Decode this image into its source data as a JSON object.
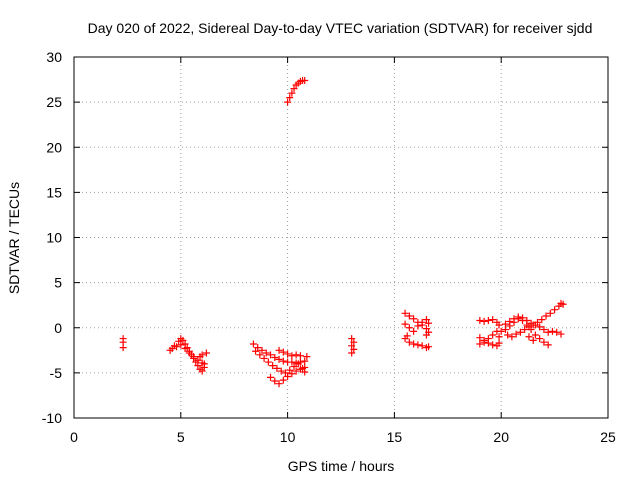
{
  "chart_data": {
    "type": "scatter",
    "title": "Day 020 of 2022, Sidereal Day-to-day VTEC variation (SDTVAR) for receiver sjdd",
    "xlabel": "GPS time / hours",
    "ylabel": "SDTVAR / TECUs",
    "xlim": [
      0,
      25
    ],
    "ylim": [
      -10,
      30
    ],
    "xticks": [
      "0",
      "5",
      "10",
      "15",
      "20",
      "25"
    ],
    "yticks": [
      "-10",
      "-5",
      "0",
      "5",
      "10",
      "15",
      "20",
      "25",
      "30"
    ],
    "grid": true,
    "marker": "plus",
    "color": "#ff0000",
    "series": [
      {
        "points": [
          [
            2.3,
            -1.2
          ],
          [
            2.3,
            -1.6
          ],
          [
            2.3,
            -2.2
          ],
          [
            4.5,
            -2.5
          ],
          [
            4.7,
            -2.0
          ],
          [
            4.9,
            -1.5
          ],
          [
            5.0,
            -1.2
          ],
          [
            5.1,
            -1.4
          ],
          [
            5.2,
            -1.8
          ],
          [
            5.3,
            -2.2
          ],
          [
            5.4,
            -2.6
          ],
          [
            5.5,
            -3.0
          ],
          [
            5.6,
            -3.4
          ],
          [
            5.7,
            -3.8
          ],
          [
            5.8,
            -4.2
          ],
          [
            5.9,
            -4.6
          ],
          [
            6.0,
            -4.8
          ],
          [
            6.1,
            -4.4
          ],
          [
            6.1,
            -4.0
          ],
          [
            4.6,
            -2.3
          ],
          [
            4.8,
            -2.1
          ],
          [
            5.0,
            -1.9
          ],
          [
            5.2,
            -2.3
          ],
          [
            5.4,
            -2.8
          ],
          [
            5.6,
            -3.2
          ],
          [
            5.8,
            -3.6
          ],
          [
            6.0,
            -3.9
          ],
          [
            5.9,
            -3.2
          ],
          [
            6.0,
            -3.0
          ],
          [
            6.2,
            -2.8
          ],
          [
            8.4,
            -1.8
          ],
          [
            8.6,
            -2.2
          ],
          [
            8.8,
            -2.5
          ],
          [
            9.0,
            -2.8
          ],
          [
            9.2,
            -3.0
          ],
          [
            9.4,
            -3.3
          ],
          [
            9.6,
            -3.5
          ],
          [
            9.8,
            -3.7
          ],
          [
            10.0,
            -3.8
          ],
          [
            10.2,
            -3.8
          ],
          [
            10.4,
            -3.9
          ],
          [
            10.6,
            -3.8
          ],
          [
            10.8,
            -3.7
          ],
          [
            8.5,
            -2.6
          ],
          [
            8.7,
            -3.0
          ],
          [
            8.9,
            -3.4
          ],
          [
            9.1,
            -3.8
          ],
          [
            9.3,
            -4.2
          ],
          [
            9.5,
            -4.5
          ],
          [
            9.7,
            -4.8
          ],
          [
            9.9,
            -5.0
          ],
          [
            10.1,
            -4.7
          ],
          [
            10.3,
            -4.3
          ],
          [
            10.5,
            -4.0
          ],
          [
            10.7,
            -4.5
          ],
          [
            10.8,
            -4.9
          ],
          [
            9.2,
            -5.5
          ],
          [
            9.4,
            -5.9
          ],
          [
            9.6,
            -6.2
          ],
          [
            9.8,
            -5.8
          ],
          [
            10.0,
            -5.4
          ],
          [
            10.2,
            -5.1
          ],
          [
            10.4,
            -4.8
          ],
          [
            10.6,
            -4.6
          ],
          [
            10.8,
            -4.4
          ],
          [
            9.6,
            -2.5
          ],
          [
            9.8,
            -2.7
          ],
          [
            10.0,
            -2.9
          ],
          [
            10.2,
            -3.1
          ],
          [
            10.4,
            -3.0
          ],
          [
            10.6,
            -3.1
          ],
          [
            10.9,
            -3.2
          ],
          [
            10.0,
            25.0
          ],
          [
            10.1,
            25.5
          ],
          [
            10.2,
            26.0
          ],
          [
            10.3,
            26.5
          ],
          [
            10.4,
            26.9
          ],
          [
            10.5,
            27.1
          ],
          [
            10.6,
            27.3
          ],
          [
            10.7,
            27.4
          ],
          [
            10.8,
            27.4
          ],
          [
            13.0,
            -1.2
          ],
          [
            13.1,
            -1.6
          ],
          [
            13.0,
            -2.0
          ],
          [
            13.1,
            -2.4
          ],
          [
            13.0,
            -2.8
          ],
          [
            15.5,
            1.6
          ],
          [
            15.7,
            1.3
          ],
          [
            15.9,
            1.0
          ],
          [
            16.1,
            0.6
          ],
          [
            16.3,
            0.3
          ],
          [
            16.5,
            -0.1
          ],
          [
            16.6,
            -0.5
          ],
          [
            16.5,
            -0.8
          ],
          [
            15.5,
            0.4
          ],
          [
            15.7,
            0.0
          ],
          [
            15.9,
            -0.4
          ],
          [
            16.1,
            0.2
          ],
          [
            16.3,
            0.6
          ],
          [
            16.5,
            0.9
          ],
          [
            16.6,
            0.5
          ],
          [
            15.5,
            -1.2
          ],
          [
            15.7,
            -1.6
          ],
          [
            15.9,
            -1.8
          ],
          [
            16.1,
            -1.9
          ],
          [
            16.3,
            -2.0
          ],
          [
            16.5,
            -2.2
          ],
          [
            16.6,
            -2.1
          ],
          [
            15.6,
            -0.9
          ],
          [
            19.0,
            0.8
          ],
          [
            19.2,
            0.7
          ],
          [
            19.4,
            0.8
          ],
          [
            19.6,
            0.9
          ],
          [
            19.8,
            0.6
          ],
          [
            19.9,
            0.3
          ],
          [
            19.0,
            -1.1
          ],
          [
            19.2,
            -1.4
          ],
          [
            19.4,
            -1.7
          ],
          [
            19.6,
            -1.9
          ],
          [
            19.8,
            -2.0
          ],
          [
            19.9,
            -1.7
          ],
          [
            19.0,
            -1.8
          ],
          [
            19.2,
            -1.6
          ],
          [
            19.4,
            -1.2
          ],
          [
            19.6,
            -0.8
          ],
          [
            19.8,
            -0.4
          ],
          [
            19.9,
            -1.0
          ],
          [
            20.0,
            -0.4
          ],
          [
            20.2,
            -0.2
          ],
          [
            20.4,
            0.2
          ],
          [
            20.6,
            0.6
          ],
          [
            20.8,
            1.0
          ],
          [
            21.0,
            1.1
          ],
          [
            21.2,
            0.8
          ],
          [
            21.4,
            0.5
          ],
          [
            21.6,
            0.3
          ],
          [
            21.8,
            0.1
          ],
          [
            22.0,
            -0.2
          ],
          [
            22.2,
            -0.5
          ],
          [
            22.4,
            -0.4
          ],
          [
            22.6,
            -0.5
          ],
          [
            22.8,
            -0.7
          ],
          [
            20.2,
            0.4
          ],
          [
            20.4,
            0.7
          ],
          [
            20.6,
            1.0
          ],
          [
            20.8,
            1.2
          ],
          [
            21.0,
            0.8
          ],
          [
            21.2,
            0.3
          ],
          [
            21.4,
            -0.2
          ],
          [
            21.6,
            -0.8
          ],
          [
            21.8,
            -1.2
          ],
          [
            22.0,
            -1.6
          ],
          [
            22.2,
            -1.9
          ],
          [
            21.5,
            -1.4
          ],
          [
            21.3,
            -1.0
          ],
          [
            20.3,
            -0.8
          ],
          [
            20.5,
            -1.0
          ],
          [
            20.7,
            -0.7
          ],
          [
            20.9,
            -0.5
          ],
          [
            21.1,
            -0.2
          ],
          [
            21.3,
            0.1
          ],
          [
            21.5,
            0.3
          ],
          [
            21.7,
            0.6
          ],
          [
            21.9,
            0.9
          ],
          [
            22.1,
            1.3
          ],
          [
            22.3,
            1.6
          ],
          [
            22.5,
            2.0
          ],
          [
            22.7,
            2.4
          ],
          [
            22.9,
            2.6
          ],
          [
            22.8,
            2.7
          ]
        ]
      }
    ]
  }
}
